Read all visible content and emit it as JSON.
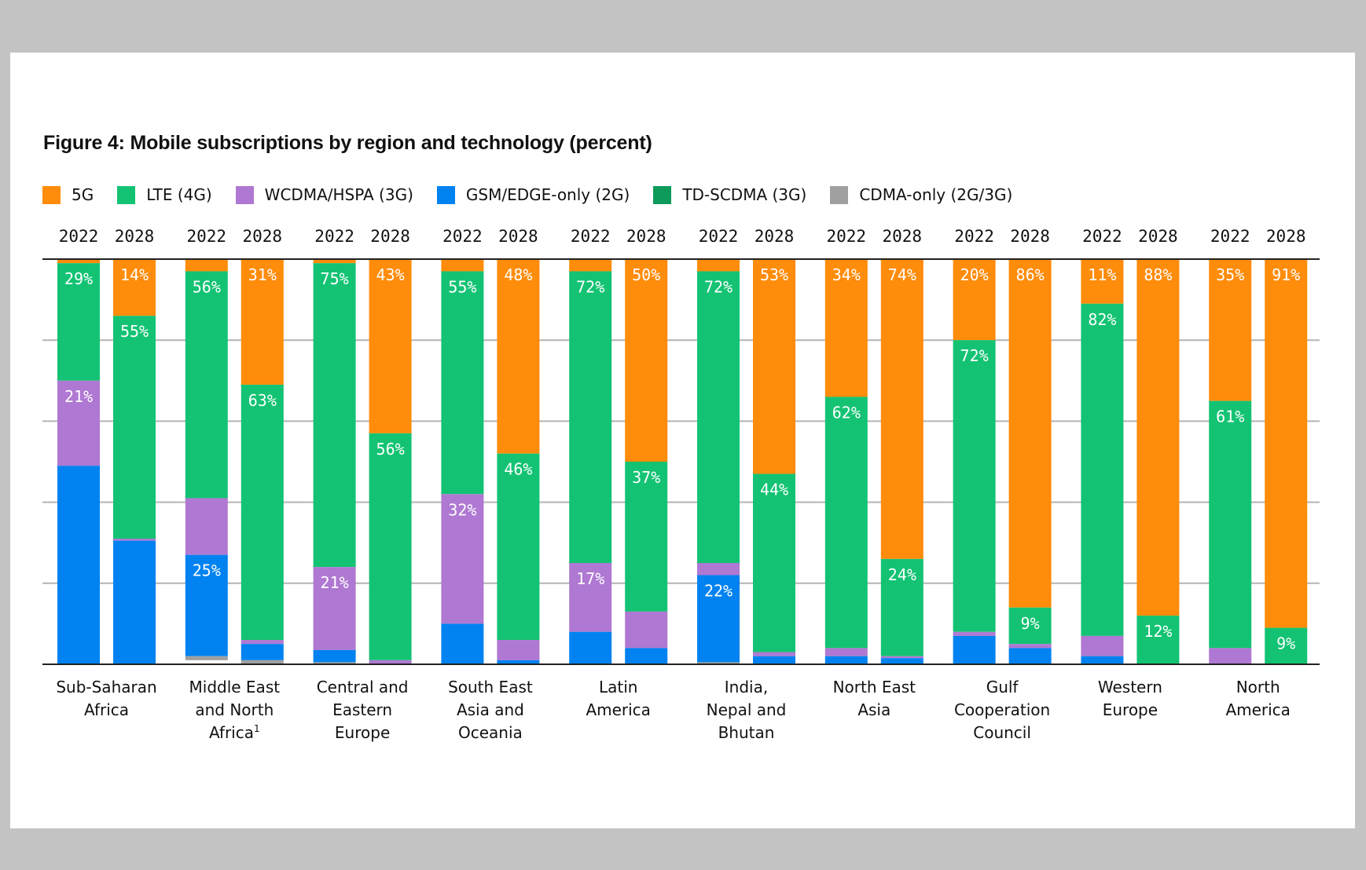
{
  "page": {
    "background": "#c3c3c3",
    "panel_background": "#ffffff"
  },
  "chart_data": {
    "type": "bar",
    "stacked": true,
    "title": "Figure 4: Mobile subscriptions by region and technology (percent)",
    "xlabel": "",
    "ylabel": "",
    "ylim": [
      0,
      100
    ],
    "grid": true,
    "legend_position": "top-left",
    "years": [
      "2022",
      "2028"
    ],
    "technologies": [
      {
        "key": "5g",
        "name": "5G",
        "color": "#ff8c0a"
      },
      {
        "key": "lte",
        "name": "LTE (4G)",
        "color": "#13c373"
      },
      {
        "key": "wcdma",
        "name": "WCDMA/HSPA (3G)",
        "color": "#af78d2"
      },
      {
        "key": "gsm",
        "name": "GSM/EDGE-only (2G)",
        "color": "#0082f0"
      },
      {
        "key": "tdscdma",
        "name": "TD-SCDMA (3G)",
        "color": "#0d9a5a"
      },
      {
        "key": "cdma",
        "name": "CDMA-only (2G/3G)",
        "color": "#a0a0a0"
      }
    ],
    "categories": [
      {
        "name": [
          "Sub-Saharan",
          "Africa"
        ],
        "footnote": ""
      },
      {
        "name": [
          "Middle East",
          "and North",
          "Africa"
        ],
        "footnote": "1"
      },
      {
        "name": [
          "Central and",
          "Eastern",
          "Europe"
        ],
        "footnote": ""
      },
      {
        "name": [
          "South East",
          "Asia and",
          "Oceania"
        ],
        "footnote": ""
      },
      {
        "name": [
          "Latin",
          "America"
        ],
        "footnote": ""
      },
      {
        "name": [
          "India,",
          "Nepal and",
          "Bhutan"
        ],
        "footnote": ""
      },
      {
        "name": [
          "North East",
          "Asia"
        ],
        "footnote": ""
      },
      {
        "name": [
          "Gulf",
          "Cooperation",
          "Council"
        ],
        "footnote": ""
      },
      {
        "name": [
          "Western",
          "Europe"
        ],
        "footnote": ""
      },
      {
        "name": [
          "North",
          "America"
        ],
        "footnote": ""
      }
    ],
    "bars": [
      [
        {
          "5g": 1,
          "lte": 29,
          "wcdma": 21,
          "gsm": 49,
          "tdscdma": 0,
          "cdma": 0,
          "labels": {
            "lte": "29%",
            "wcdma": "21%"
          }
        },
        {
          "5g": 14,
          "lte": 55,
          "wcdma": 0.5,
          "gsm": 30.5,
          "tdscdma": 0,
          "cdma": 0,
          "labels": {
            "5g": "14%",
            "lte": "55%"
          }
        }
      ],
      [
        {
          "5g": 3,
          "lte": 56,
          "wcdma": 14,
          "gsm": 25,
          "tdscdma": 0,
          "cdma": 1,
          "labels": {
            "lte": "56%",
            "gsm": "25%"
          }
        },
        {
          "5g": 31,
          "lte": 63,
          "wcdma": 1,
          "gsm": 4,
          "tdscdma": 0,
          "cdma": 1,
          "labels": {
            "5g": "31%",
            "lte": "63%"
          }
        }
      ],
      [
        {
          "5g": 1,
          "lte": 75,
          "wcdma": 20.5,
          "gsm": 3,
          "tdscdma": 0,
          "cdma": 0.5,
          "labels": {
            "lte": "75%",
            "wcdma": "21%"
          }
        },
        {
          "5g": 43,
          "lte": 56,
          "wcdma": 1,
          "gsm": 0,
          "tdscdma": 0,
          "cdma": 0,
          "labels": {
            "5g": "43%",
            "lte": "56%"
          }
        }
      ],
      [
        {
          "5g": 3,
          "lte": 55,
          "wcdma": 32,
          "gsm": 10,
          "tdscdma": 0,
          "cdma": 0,
          "labels": {
            "lte": "55%",
            "wcdma": "32%"
          }
        },
        {
          "5g": 48,
          "lte": 46,
          "wcdma": 5,
          "gsm": 1,
          "tdscdma": 0,
          "cdma": 0,
          "labels": {
            "5g": "48%",
            "lte": "46%"
          }
        }
      ],
      [
        {
          "5g": 3,
          "lte": 72,
          "wcdma": 17,
          "gsm": 8,
          "tdscdma": 0,
          "cdma": 0,
          "labels": {
            "lte": "72%",
            "wcdma": "17%"
          }
        },
        {
          "5g": 50,
          "lte": 37,
          "wcdma": 9,
          "gsm": 4,
          "tdscdma": 0,
          "cdma": 0,
          "labels": {
            "5g": "50%",
            "lte": "37%"
          }
        }
      ],
      [
        {
          "5g": 3,
          "lte": 72,
          "wcdma": 3,
          "gsm": 21.5,
          "tdscdma": 0,
          "cdma": 0.5,
          "labels": {
            "lte": "72%",
            "gsm": "22%"
          }
        },
        {
          "5g": 53,
          "lte": 44,
          "wcdma": 1,
          "gsm": 2,
          "tdscdma": 0,
          "cdma": 0,
          "labels": {
            "5g": "53%",
            "lte": "44%"
          }
        }
      ],
      [
        {
          "5g": 34,
          "lte": 62,
          "wcdma": 2,
          "gsm": 2,
          "tdscdma": 0,
          "cdma": 0,
          "labels": {
            "5g": "34%",
            "lte": "62%"
          }
        },
        {
          "5g": 74,
          "lte": 24,
          "wcdma": 0.5,
          "gsm": 1.5,
          "tdscdma": 0,
          "cdma": 0,
          "labels": {
            "5g": "74%",
            "lte": "24%"
          }
        }
      ],
      [
        {
          "5g": 20,
          "lte": 72,
          "wcdma": 1,
          "gsm": 7,
          "tdscdma": 0,
          "cdma": 0,
          "labels": {
            "5g": "20%",
            "lte": "72%"
          }
        },
        {
          "5g": 86,
          "lte": 9,
          "wcdma": 1,
          "gsm": 4,
          "tdscdma": 0,
          "cdma": 0,
          "labels": {
            "5g": "86%",
            "lte": "9%"
          }
        }
      ],
      [
        {
          "5g": 11,
          "lte": 82,
          "wcdma": 5,
          "gsm": 2,
          "tdscdma": 0,
          "cdma": 0,
          "labels": {
            "5g": "11%",
            "lte": "82%"
          }
        },
        {
          "5g": 88,
          "lte": 12,
          "wcdma": 0,
          "gsm": 0,
          "tdscdma": 0,
          "cdma": 0,
          "labels": {
            "5g": "88%",
            "lte": "12%"
          }
        }
      ],
      [
        {
          "5g": 35,
          "lte": 61,
          "wcdma": 4,
          "gsm": 0,
          "tdscdma": 0,
          "cdma": 0,
          "labels": {
            "5g": "35%",
            "lte": "61%"
          }
        },
        {
          "5g": 91,
          "lte": 9,
          "wcdma": 0,
          "gsm": 0,
          "tdscdma": 0,
          "cdma": 0,
          "labels": {
            "5g": "91%",
            "lte": "9%"
          }
        }
      ]
    ]
  }
}
